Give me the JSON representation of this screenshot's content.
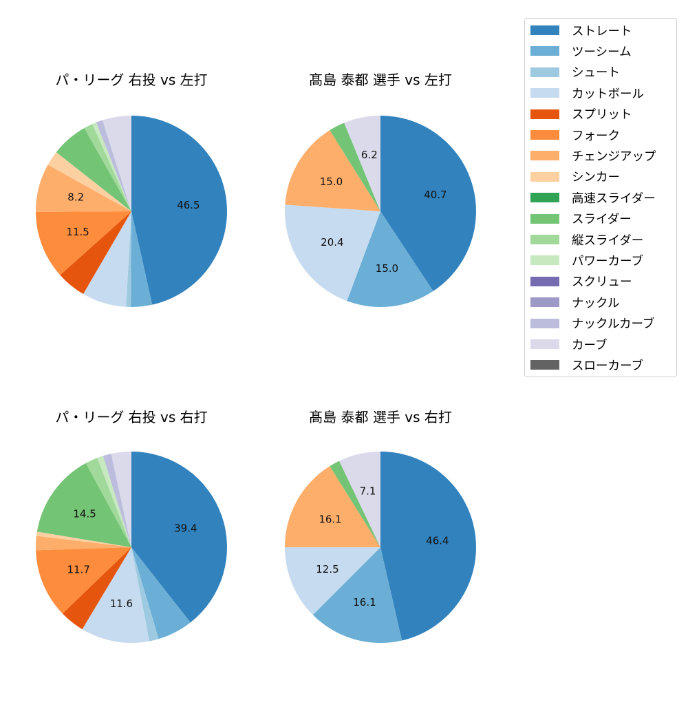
{
  "chart_data": [
    {
      "type": "pie",
      "title": "パ・リーグ 右投 vs 左打",
      "start_angle": 90,
      "direction": "clockwise",
      "labels": [
        "ストレート",
        "ツーシーム",
        "シュート",
        "カットボール",
        "スプリット",
        "フォーク",
        "チェンジアップ",
        "シンカー",
        "スライダー",
        "縦スライダー",
        "パワーカーブ",
        "ナックルカーブ",
        "カーブ"
      ],
      "values": [
        46.5,
        3.6,
        0.8,
        7.5,
        5.0,
        11.5,
        8.2,
        2.5,
        6.2,
        1.5,
        0.7,
        1.1,
        4.9
      ],
      "shown_labels": [
        "46.5",
        "",
        "",
        "",
        "",
        "11.5",
        "8.2",
        "",
        "",
        "",
        "",
        "",
        ""
      ]
    },
    {
      "type": "pie",
      "title": "髙島 泰都 選手 vs 左打",
      "start_angle": 90,
      "direction": "clockwise",
      "labels": [
        "ストレート",
        "ツーシーム",
        "カットボール",
        "チェンジアップ",
        "スライダー",
        "カーブ"
      ],
      "values": [
        40.7,
        15.0,
        20.4,
        15.0,
        2.7,
        6.2
      ],
      "shown_labels": [
        "40.7",
        "15.0",
        "20.4",
        "15.0",
        "",
        "6.2"
      ]
    },
    {
      "type": "pie",
      "title": "パ・リーグ 右投 vs 右打",
      "start_angle": 90,
      "direction": "clockwise",
      "labels": [
        "ストレート",
        "ツーシーム",
        "シュート",
        "カットボール",
        "スプリット",
        "フォーク",
        "チェンジアップ",
        "シンカー",
        "スライダー",
        "縦スライダー",
        "パワーカーブ",
        "ナックルカーブ",
        "カーブ"
      ],
      "values": [
        39.4,
        6.0,
        1.6,
        11.6,
        4.2,
        11.7,
        2.4,
        0.7,
        14.5,
        2.1,
        1.0,
        1.4,
        3.4
      ],
      "shown_labels": [
        "39.4",
        "",
        "",
        "11.6",
        "",
        "11.7",
        "",
        "",
        "14.5",
        "",
        "",
        "",
        ""
      ]
    },
    {
      "type": "pie",
      "title": "髙島 泰都 選手 vs 右打",
      "start_angle": 90,
      "direction": "clockwise",
      "labels": [
        "ストレート",
        "ツーシーム",
        "カットボール",
        "チェンジアップ",
        "スライダー",
        "カーブ"
      ],
      "values": [
        46.4,
        16.1,
        12.5,
        16.1,
        1.8,
        7.1
      ],
      "shown_labels": [
        "46.4",
        "16.1",
        "12.5",
        "16.1",
        "",
        "7.1"
      ]
    }
  ],
  "legend": {
    "items": [
      {
        "label": "ストレート",
        "color": "#3182bd"
      },
      {
        "label": "ツーシーム",
        "color": "#6baed6"
      },
      {
        "label": "シュート",
        "color": "#9ecae1"
      },
      {
        "label": "カットボール",
        "color": "#c6dbef"
      },
      {
        "label": "スプリット",
        "color": "#e6550d"
      },
      {
        "label": "フォーク",
        "color": "#fd8d3c"
      },
      {
        "label": "チェンジアップ",
        "color": "#fdae6b"
      },
      {
        "label": "シンカー",
        "color": "#fdd0a2"
      },
      {
        "label": "高速スライダー",
        "color": "#31a354"
      },
      {
        "label": "スライダー",
        "color": "#74c476"
      },
      {
        "label": "縦スライダー",
        "color": "#a1d99b"
      },
      {
        "label": "パワーカーブ",
        "color": "#c7e9c0"
      },
      {
        "label": "スクリュー",
        "color": "#756bb1"
      },
      {
        "label": "ナックル",
        "color": "#9e9ac8"
      },
      {
        "label": "ナックルカーブ",
        "color": "#bcbddc"
      },
      {
        "label": "カーブ",
        "color": "#dadaeb"
      },
      {
        "label": "スローカーブ",
        "color": "#636363"
      }
    ]
  }
}
